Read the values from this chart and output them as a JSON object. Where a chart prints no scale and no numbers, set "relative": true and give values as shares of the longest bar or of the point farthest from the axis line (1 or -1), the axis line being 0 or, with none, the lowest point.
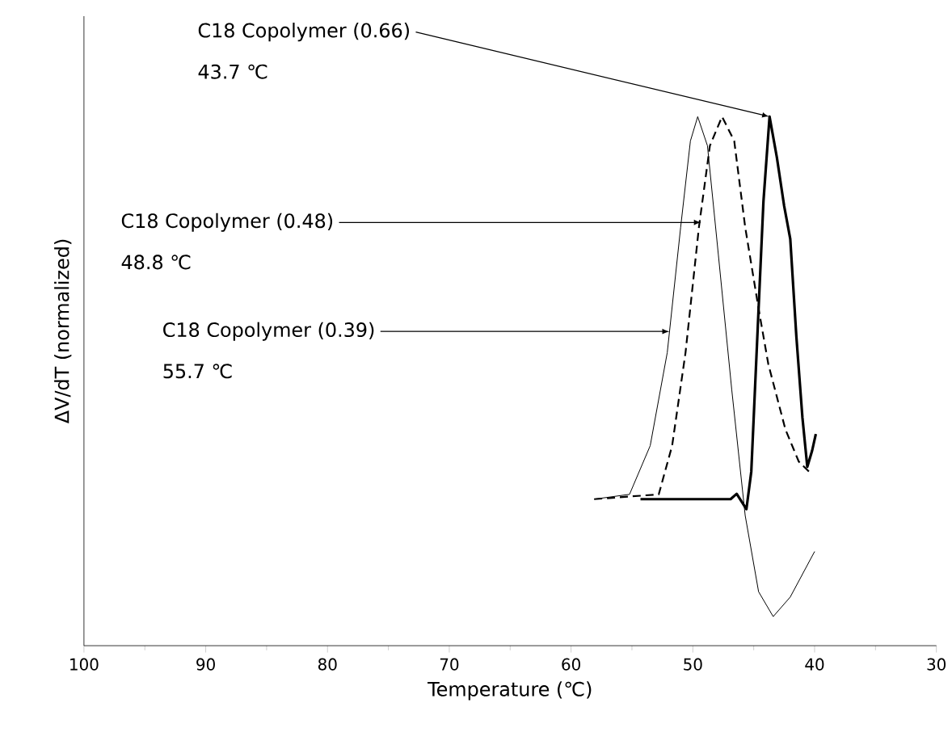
{
  "chart_data": {
    "type": "line",
    "relative": true,
    "xlabel": "Temperature (℃)",
    "ylabel": "ΔV/dT (normalized)",
    "xlim": [
      100,
      30
    ],
    "xticks": [
      100,
      90,
      80,
      70,
      60,
      50,
      40,
      30
    ],
    "grid": false,
    "marker": "none",
    "series": [
      {
        "color": "#000000",
        "line_style": "solid",
        "x": [
          58.1,
          55.2,
          53.5,
          52.1,
          51.0,
          50.2,
          49.6,
          48.8,
          47.9,
          46.8,
          45.7,
          44.6,
          43.4,
          42.0,
          40.0
        ],
        "values": [
          0.277,
          0.286,
          0.378,
          0.554,
          0.791,
          0.954,
          1,
          0.945,
          0.738,
          0.483,
          0.246,
          0.102,
          0.055,
          0.092,
          0.178
        ]
      },
      {
        "color": "#000000",
        "line_style": "dashed",
        "x": [
          58.1,
          52.8,
          51.7,
          50.6,
          49.5,
          48.6,
          47.6,
          46.6,
          45.7,
          44.6,
          43.8,
          42.4,
          41.3,
          40.2
        ],
        "values": [
          0.277,
          0.286,
          0.378,
          0.554,
          0.791,
          0.945,
          1,
          0.954,
          0.791,
          0.637,
          0.532,
          0.409,
          0.348,
          0.323
        ]
      },
      {
        "color": "#000000",
        "line_style": "solid",
        "x": [
          54.3,
          46.9,
          46.4,
          45.6,
          45.2,
          44.6,
          44.2,
          43.7,
          43.1,
          42.5,
          42.0,
          41.5,
          41.0,
          40.6,
          40.2,
          39.9
        ],
        "values": [
          0.277,
          0.277,
          0.287,
          0.258,
          0.329,
          0.637,
          0.84,
          1,
          0.923,
          0.831,
          0.769,
          0.585,
          0.431,
          0.338,
          0.369,
          0.4
        ]
      }
    ],
    "annotations": [
      {
        "text": "C18 Copolymer (0.66)",
        "x": 43.7,
        "y": 1
      },
      "43.7 ℃",
      {
        "text": "C18 Copolymer (0.48)",
        "x": 49.3,
        "y": 0.8
      },
      "48.8 ℃",
      {
        "text": "C18 Copolymer (0.39)",
        "x": 51.9,
        "y": 0.594
      },
      "55.7 ℃"
    ]
  }
}
